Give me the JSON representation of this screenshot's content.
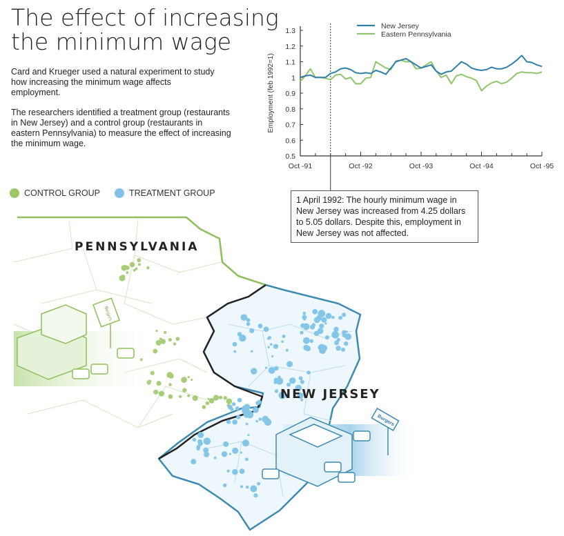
{
  "header": {
    "title_line1": "The effect of increasing",
    "title_line2": "the minimum wage"
  },
  "intro": {
    "p1": "Card and Krueger used a natural experiment to study how increasing the minimum wage affects employment.",
    "p2": "The researchers identified a treatment group (restaurants in New Jersey) and a control group (restaurants in eastern Pennsylvania) to measure the effect of increasing the minimum wage."
  },
  "legend": {
    "control": {
      "label": "CONTROL GROUP",
      "color": "#9cc766"
    },
    "treatment": {
      "label": "TREATMENT GROUP",
      "color": "#7ec3e6"
    }
  },
  "map": {
    "pennsylvania_label": "PENNSYLVANIA",
    "new_jersey_label": "NEW JERSEY",
    "pa_color": "#8dbf5a",
    "nj_color": "#3d8ab0",
    "sign_lettering": "Burgers"
  },
  "callout": {
    "text": "1 April 1992: The hourly minimum wage in New Jersey was increased from 4.25 dollars to 5.05 dollars. Despite this, employment in New Jersey was not affected."
  },
  "chart_data": {
    "type": "line",
    "ylabel": "Employment (feb 1992=1)",
    "xlabel": "",
    "ylim": [
      0.5,
      1.3
    ],
    "yticks": [
      "0.5",
      "0.6",
      "0.7",
      "0.8",
      "0.9",
      "1",
      "1.1",
      "1.2",
      "1.3"
    ],
    "xticks": [
      "Oct -91",
      "Oct -92",
      "Oct -93",
      "Oct -94",
      "Oct -95"
    ],
    "x_range": [
      "Oct 1991",
      "Oct 1995"
    ],
    "x_unit": "monthly",
    "event_marker": "Apr 1992",
    "legend_position": "top",
    "grid": false,
    "series": [
      {
        "name": "New Jersey",
        "color": "#2f7fa8",
        "values": [
          1.0,
          1.01,
          1.015,
          1.0,
          1.0,
          1.0,
          1.025,
          1.035,
          1.055,
          1.06,
          1.05,
          1.03,
          1.025,
          1.03,
          1.025,
          1.045,
          1.035,
          1.02,
          1.06,
          1.1,
          1.11,
          1.12,
          1.1,
          1.08,
          1.06,
          1.07,
          1.08,
          1.04,
          1.02,
          1.035,
          1.04,
          1.07,
          1.1,
          1.085,
          1.06,
          1.05,
          1.045,
          1.05,
          1.065,
          1.055,
          1.055,
          1.065,
          1.085,
          1.11,
          1.14,
          1.1,
          1.095,
          1.08,
          1.07
        ]
      },
      {
        "name": "Eastern Pennsylvania",
        "color": "#8fc46a",
        "values": [
          0.975,
          1.01,
          1.055,
          1.0,
          1.0,
          0.995,
          0.985,
          1.015,
          1.02,
          0.99,
          1.0,
          0.96,
          0.96,
          0.995,
          1.0,
          1.1,
          1.08,
          1.06,
          1.05,
          1.105,
          1.11,
          1.1,
          1.1,
          1.055,
          1.06,
          1.08,
          1.1,
          1.04,
          1.0,
          1.015,
          0.96,
          1.01,
          1.02,
          1.005,
          0.995,
          0.98,
          0.915,
          0.945,
          0.965,
          0.975,
          0.96,
          0.97,
          0.995,
          1.025,
          1.035,
          1.03,
          1.03,
          1.025,
          1.035
        ]
      }
    ]
  }
}
